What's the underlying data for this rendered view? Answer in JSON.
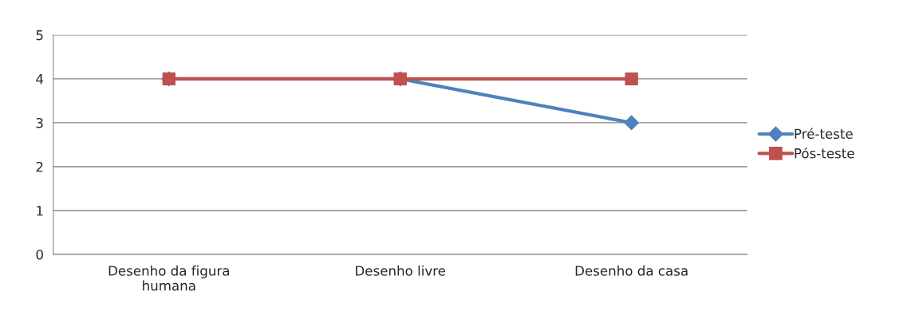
{
  "chart_data": {
    "type": "line",
    "categories": [
      "Desenho da figura\nhumana",
      "Desenho livre",
      "Desenho da casa"
    ],
    "series": [
      {
        "name": "Pré-teste",
        "color": "#4f81bd",
        "values": [
          4,
          4,
          3
        ],
        "marker": "diamond"
      },
      {
        "name": "Pós-teste",
        "color": "#c0504d",
        "values": [
          4,
          4,
          4
        ],
        "marker": "square"
      }
    ],
    "ylim": [
      0,
      5
    ],
    "yticks": [
      0,
      1,
      2,
      3,
      4,
      5
    ],
    "grid": "y",
    "legend": "right",
    "line_style": "solid"
  }
}
